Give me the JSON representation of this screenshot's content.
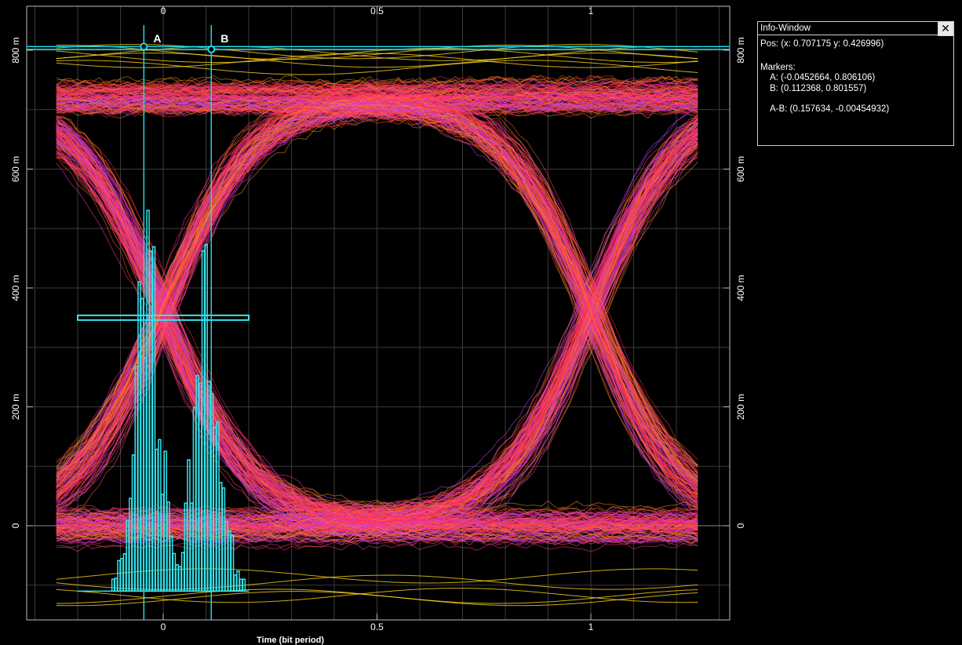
{
  "chart_data": {
    "type": "eye-diagram",
    "xlabel": "Time (bit period)",
    "x_ticks": [
      "0",
      "0.5",
      "1"
    ],
    "x_tick_values": [
      0,
      0.5,
      1
    ],
    "y_ticks": [
      "800 m",
      "600 m",
      "400 m",
      "200 m",
      "0"
    ],
    "y_tick_values": [
      0.8,
      0.6,
      0.4,
      0.2,
      0
    ],
    "xlim": [
      -0.32,
      1.32
    ],
    "ylim": [
      -0.18,
      0.84
    ],
    "eye": {
      "high_level": 0.72,
      "low_level": 0.0,
      "rise_crossing_x": 0.0,
      "fall_crossing_x": 1.0,
      "open_top": 0.63,
      "open_bottom": 0.08,
      "trace_x_range": [
        -0.25,
        1.25
      ]
    },
    "markers": [
      {
        "label": "A",
        "x": -0.0452664,
        "y": 0.806106
      },
      {
        "label": "B",
        "x": 0.112368,
        "y": 0.801557
      }
    ],
    "histogram_level": 0.35,
    "grid": true,
    "colors": {
      "traces": [
        "#ff2a4d",
        "#ff2f9a",
        "#ff5a2a",
        "#ff8a1a",
        "#c43cff",
        "#3a3aff",
        "#ffd21a"
      ],
      "markers": "#1ed9e6",
      "histogram": "#33e6ee",
      "grid": "#3a3a3a"
    }
  },
  "info_window": {
    "title": "Info-Window",
    "close_icon": "close-icon",
    "pos_line": "Pos:  (x: 0.707175  y: 0.426996)",
    "markers_heading": "Markers:",
    "marker_a_line": "A: (-0.0452664, 0.806106)",
    "marker_b_line": "B: (0.112368, 0.801557)",
    "delta_line": "A-B: (0.157634, -0.00454932)"
  }
}
